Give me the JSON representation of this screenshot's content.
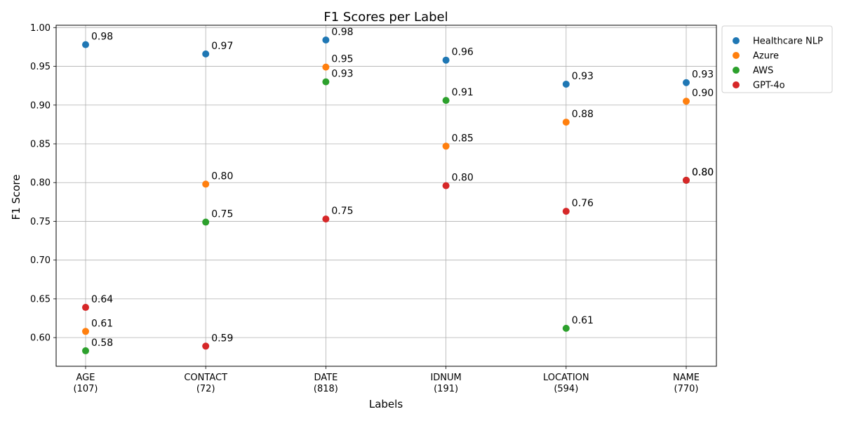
{
  "chart_data": {
    "type": "scatter",
    "title": "F1 Scores per Label",
    "xlabel": "Labels",
    "ylabel": "F1 Score",
    "categories": [
      "AGE\n(107)",
      "CONTACT\n(72)",
      "DATE\n(818)",
      "IDNUM\n(191)",
      "LOCATION\n(594)",
      "NAME\n(770)"
    ],
    "ylim": [
      0.563,
      1.003
    ],
    "yticks": [
      "0.60",
      "0.65",
      "0.70",
      "0.75",
      "0.80",
      "0.85",
      "0.90",
      "0.95",
      "1.00"
    ],
    "grid": true,
    "legend_position": "outside top-right",
    "series": [
      {
        "name": "Healthcare NLP",
        "color": "#1f77b4",
        "values": [
          0.978,
          0.966,
          0.984,
          0.958,
          0.927,
          0.929
        ],
        "labels": [
          "0.98",
          "0.97",
          "0.98",
          "0.96",
          "0.93",
          "0.93"
        ]
      },
      {
        "name": "Azure",
        "color": "#ff7f0e",
        "values": [
          0.608,
          0.798,
          0.949,
          0.847,
          0.878,
          0.905
        ],
        "labels": [
          "0.61",
          "0.80",
          "0.95",
          "0.85",
          "0.88",
          "0.90"
        ]
      },
      {
        "name": "AWS",
        "color": "#2ca02c",
        "values": [
          0.583,
          0.749,
          0.93,
          0.906,
          0.612,
          0.803
        ],
        "labels": [
          "0.58",
          "0.75",
          "0.93",
          "0.91",
          "0.61",
          "0.80"
        ]
      },
      {
        "name": "GPT-4o",
        "color": "#d62728",
        "values": [
          0.639,
          0.589,
          0.753,
          0.796,
          0.763,
          0.803
        ],
        "labels": [
          "0.64",
          "0.59",
          "0.75",
          "0.80",
          "0.76",
          "0.80"
        ]
      }
    ]
  }
}
